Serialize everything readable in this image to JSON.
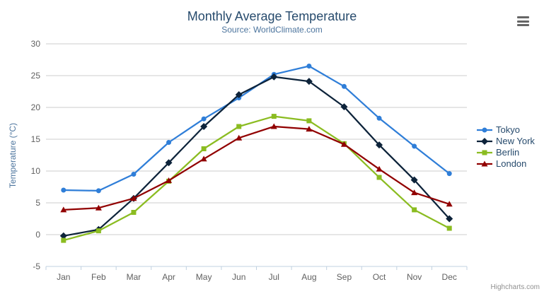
{
  "chart_data": {
    "type": "line",
    "title": "Monthly Average Temperature",
    "subtitle": "Source: WorldClimate.com",
    "xlabel": "",
    "ylabel": "Temperature (°C)",
    "categories": [
      "Jan",
      "Feb",
      "Mar",
      "Apr",
      "May",
      "Jun",
      "Jul",
      "Aug",
      "Sep",
      "Oct",
      "Nov",
      "Dec"
    ],
    "ylim": [
      -5,
      30
    ],
    "y_ticks": [
      -5,
      0,
      5,
      10,
      15,
      20,
      25,
      30
    ],
    "grid": true,
    "legend_position": "right",
    "series": [
      {
        "name": "Tokyo",
        "color": "#2f7ed8",
        "marker": "circle",
        "values": [
          7.0,
          6.9,
          9.5,
          14.5,
          18.2,
          21.5,
          25.2,
          26.5,
          23.3,
          18.3,
          13.9,
          9.6
        ]
      },
      {
        "name": "New York",
        "color": "#0d233a",
        "marker": "diamond",
        "values": [
          -0.2,
          0.8,
          5.7,
          11.3,
          17.0,
          22.0,
          24.8,
          24.1,
          20.1,
          14.1,
          8.6,
          2.5
        ]
      },
      {
        "name": "Berlin",
        "color": "#8bbc21",
        "marker": "square",
        "values": [
          -0.9,
          0.6,
          3.5,
          8.4,
          13.5,
          17.0,
          18.6,
          17.9,
          14.3,
          9.0,
          3.9,
          1.0
        ]
      },
      {
        "name": "London",
        "color": "#910000",
        "marker": "triangle",
        "values": [
          3.9,
          4.2,
          5.7,
          8.5,
          11.9,
          15.2,
          17.0,
          16.6,
          14.2,
          10.3,
          6.6,
          4.8
        ]
      }
    ],
    "credits": "Highcharts.com"
  },
  "icons": {
    "context_menu": "hamburger-menu-icon"
  },
  "colors": {
    "title": "#274b6d",
    "subtitle": "#4d759e",
    "axis_title": "#4d759e",
    "tick_label": "#606060",
    "grid_line": "#cccccc",
    "axis_line": "#c0d0e0",
    "legend_text": "#274b6d",
    "credits": "#909090",
    "menu_icon": "#666666"
  }
}
